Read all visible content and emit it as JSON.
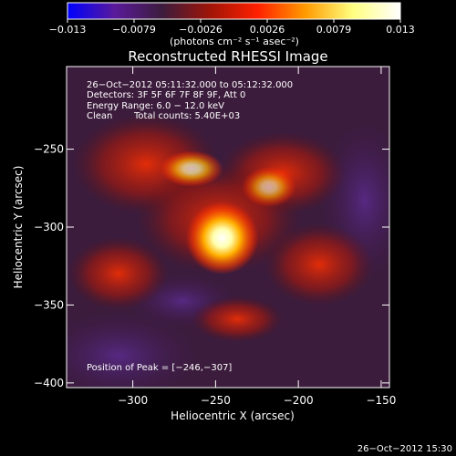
{
  "chart_data": {
    "type": "heatmap",
    "title": "Reconstructed RHESSI Image",
    "xlabel": "Heliocentric X (arcsec)",
    "ylabel": "Heliocentric Y (arcsec)",
    "xlim": [
      -340,
      -145
    ],
    "ylim": [
      -403,
      -197
    ],
    "x_ticks": [
      {
        "value": -300,
        "label": "−300"
      },
      {
        "value": -250,
        "label": "−250"
      },
      {
        "value": -200,
        "label": "−200"
      },
      {
        "value": -150,
        "label": "−150"
      }
    ],
    "y_ticks": [
      {
        "value": -250,
        "label": "−250"
      },
      {
        "value": -300,
        "label": "−300"
      },
      {
        "value": -350,
        "label": "−350"
      },
      {
        "value": -400,
        "label": "−400"
      }
    ],
    "colorbar": {
      "min": -0.013,
      "max": 0.013,
      "tick_labels": [
        "−0.013",
        "−0.0079",
        "−0.0026",
        "0.0026",
        "0.0079",
        "0.013"
      ],
      "unit_label": "(photons cm⁻² s⁻¹ asec⁻²)",
      "colors": [
        "#0000ff",
        "#5a1a9a",
        "#3c1c3c",
        "#a01408",
        "#ff2000",
        "#ff9a00",
        "#ffff80",
        "#ffffff"
      ]
    },
    "peak": {
      "x": -246,
      "y": -307
    },
    "annotations": {
      "time_range": "26−Oct−2012 05:11:32.000 to 05:12:32.000",
      "detectors": "Detectors: 3F 5F 6F 7F 8F 9F, Att 0",
      "energy": "Energy Range: 6.0 − 12.0 keV",
      "method": "Clean",
      "total_counts": "Total counts: 5.40E+03",
      "peak_label": "Position of Peak = [−246,−307]"
    },
    "timestamp": "26−Oct−2012 15:30"
  }
}
